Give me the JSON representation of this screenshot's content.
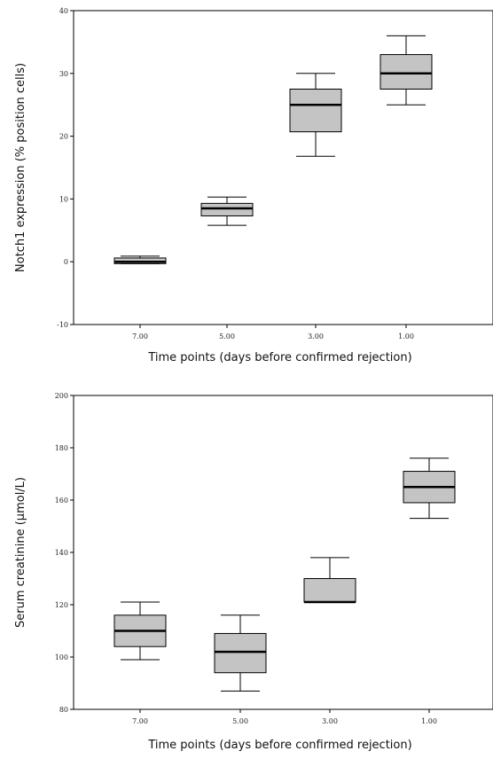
{
  "chart_data": [
    {
      "type": "box",
      "ylabel": "Notch1 expression (% position cells)",
      "xlabel": "Time points (days before confirmed rejection)",
      "ylim": [
        -10,
        40
      ],
      "yticks": [
        -10,
        0,
        10,
        20,
        30,
        40
      ],
      "categories": [
        "7.00",
        "5.00",
        "3.00",
        "1.00"
      ],
      "boxes": [
        {
          "min": -0.3,
          "q1": -0.3,
          "median": 0,
          "q3": 0.6,
          "max": 0.9
        },
        {
          "min": 5.8,
          "q1": 7.3,
          "median": 8.5,
          "q3": 9.3,
          "max": 10.3
        },
        {
          "min": 16.8,
          "q1": 20.7,
          "median": 25.0,
          "q3": 27.5,
          "max": 30.0
        },
        {
          "min": 25.0,
          "q1": 27.5,
          "median": 30.0,
          "q3": 33.0,
          "max": 36.0
        }
      ],
      "colors": {
        "box_fill": "#c4c4c4",
        "stroke": "#000000"
      }
    },
    {
      "type": "box",
      "ylabel": "Serum creatinine (μmol/L)",
      "xlabel": "Time points (days before confirmed rejection)",
      "ylim": [
        80,
        200
      ],
      "yticks": [
        80,
        100,
        120,
        140,
        160,
        180,
        200
      ],
      "categories": [
        "7.00",
        "5.00",
        "3.00",
        "1.00"
      ],
      "boxes": [
        {
          "min": 99,
          "q1": 104,
          "median": 110,
          "q3": 116,
          "max": 121
        },
        {
          "min": 87,
          "q1": 94,
          "median": 102,
          "q3": 109,
          "max": 116
        },
        {
          "min": 121,
          "q1": 121,
          "median": 121,
          "q3": 130,
          "max": 138
        },
        {
          "min": 153,
          "q1": 159,
          "median": 165,
          "q3": 171,
          "max": 176
        }
      ],
      "colors": {
        "box_fill": "#c4c4c4",
        "stroke": "#000000"
      }
    }
  ]
}
